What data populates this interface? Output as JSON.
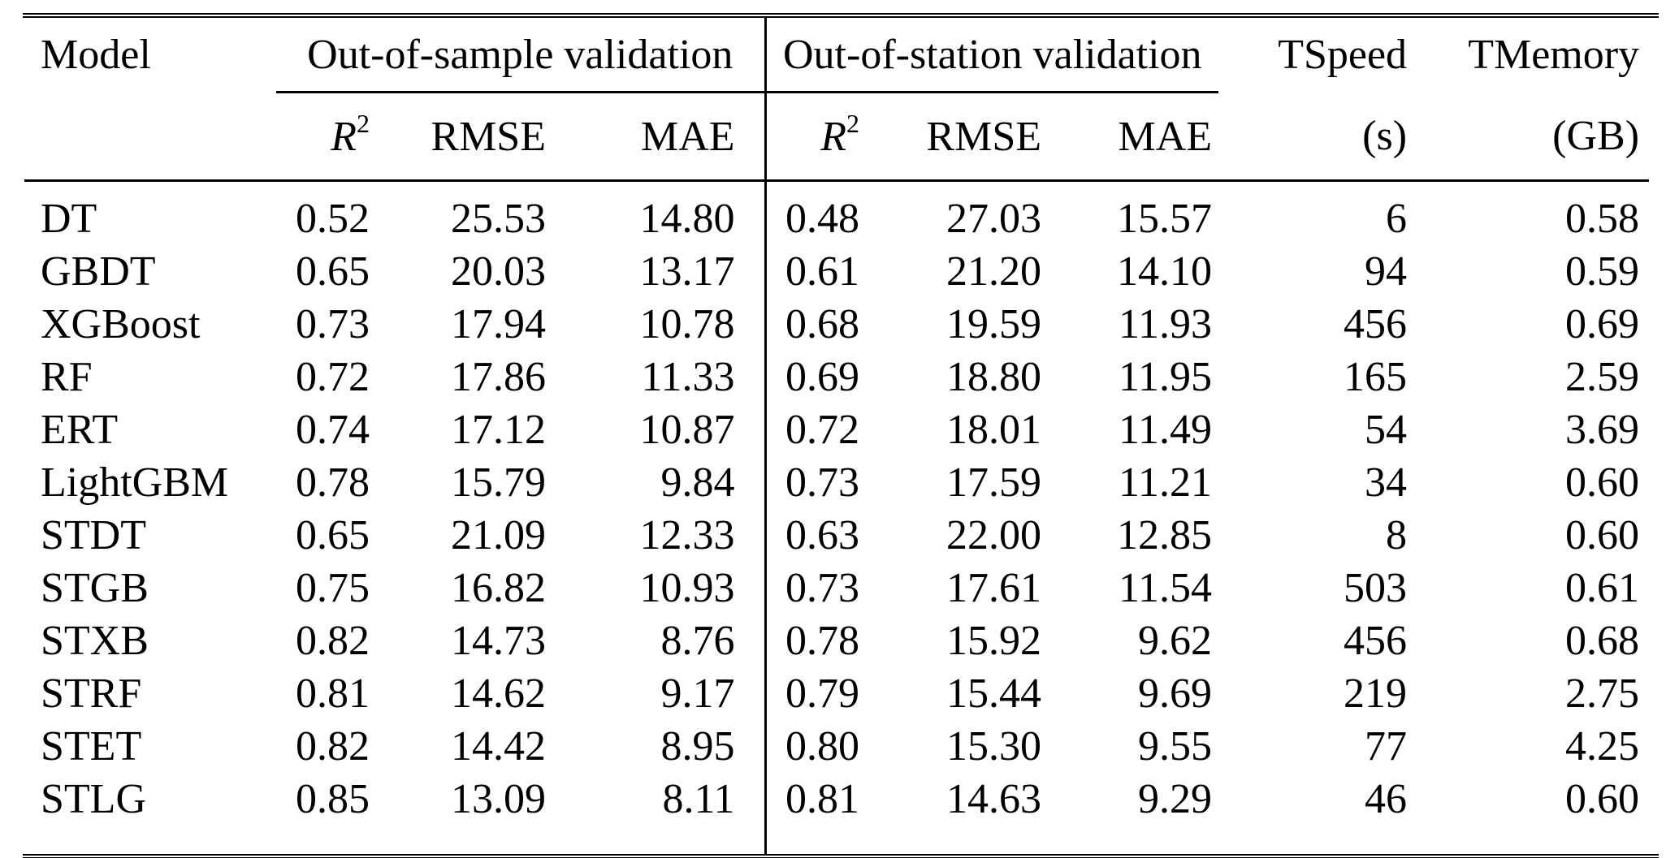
{
  "colors": {
    "background": "#ffffff",
    "text": "#000000",
    "rule": "#000000"
  },
  "table": {
    "headers": {
      "model": "Model",
      "group_oos": "Out-of-sample validation",
      "group_station": "Out-of-station validation",
      "tspeed": "TSpeed",
      "tmemory": "TMemory",
      "r2_base": "R",
      "r2_sup": "2",
      "rmse": "RMSE",
      "mae": "MAE",
      "tspeed_unit": "(s)",
      "tmemory_unit": "(GB)"
    },
    "rows": [
      {
        "model": "DT",
        "oos_r2": "0.52",
        "oos_rmse": "25.53",
        "oos_mae": "14.80",
        "st_r2": "0.48",
        "st_rmse": "27.03",
        "st_mae": "15.57",
        "tspeed": "6",
        "tmemory": "0.58"
      },
      {
        "model": "GBDT",
        "oos_r2": "0.65",
        "oos_rmse": "20.03",
        "oos_mae": "13.17",
        "st_r2": "0.61",
        "st_rmse": "21.20",
        "st_mae": "14.10",
        "tspeed": "94",
        "tmemory": "0.59"
      },
      {
        "model": "XGBoost",
        "oos_r2": "0.73",
        "oos_rmse": "17.94",
        "oos_mae": "10.78",
        "st_r2": "0.68",
        "st_rmse": "19.59",
        "st_mae": "11.93",
        "tspeed": "456",
        "tmemory": "0.69"
      },
      {
        "model": "RF",
        "oos_r2": "0.72",
        "oos_rmse": "17.86",
        "oos_mae": "11.33",
        "st_r2": "0.69",
        "st_rmse": "18.80",
        "st_mae": "11.95",
        "tspeed": "165",
        "tmemory": "2.59"
      },
      {
        "model": "ERT",
        "oos_r2": "0.74",
        "oos_rmse": "17.12",
        "oos_mae": "10.87",
        "st_r2": "0.72",
        "st_rmse": "18.01",
        "st_mae": "11.49",
        "tspeed": "54",
        "tmemory": "3.69"
      },
      {
        "model": "LightGBM",
        "oos_r2": "0.78",
        "oos_rmse": "15.79",
        "oos_mae": "9.84",
        "st_r2": "0.73",
        "st_rmse": "17.59",
        "st_mae": "11.21",
        "tspeed": "34",
        "tmemory": "0.60"
      },
      {
        "model": "STDT",
        "oos_r2": "0.65",
        "oos_rmse": "21.09",
        "oos_mae": "12.33",
        "st_r2": "0.63",
        "st_rmse": "22.00",
        "st_mae": "12.85",
        "tspeed": "8",
        "tmemory": "0.60"
      },
      {
        "model": "STGB",
        "oos_r2": "0.75",
        "oos_rmse": "16.82",
        "oos_mae": "10.93",
        "st_r2": "0.73",
        "st_rmse": "17.61",
        "st_mae": "11.54",
        "tspeed": "503",
        "tmemory": "0.61"
      },
      {
        "model": "STXB",
        "oos_r2": "0.82",
        "oos_rmse": "14.73",
        "oos_mae": "8.76",
        "st_r2": "0.78",
        "st_rmse": "15.92",
        "st_mae": "9.62",
        "tspeed": "456",
        "tmemory": "0.68"
      },
      {
        "model": "STRF",
        "oos_r2": "0.81",
        "oos_rmse": "14.62",
        "oos_mae": "9.17",
        "st_r2": "0.79",
        "st_rmse": "15.44",
        "st_mae": "9.69",
        "tspeed": "219",
        "tmemory": "2.75"
      },
      {
        "model": "STET",
        "oos_r2": "0.82",
        "oos_rmse": "14.42",
        "oos_mae": "8.95",
        "st_r2": "0.80",
        "st_rmse": "15.30",
        "st_mae": "9.55",
        "tspeed": "77",
        "tmemory": "4.25"
      },
      {
        "model": "STLG",
        "oos_r2": "0.85",
        "oos_rmse": "13.09",
        "oos_mae": "8.11",
        "st_r2": "0.81",
        "st_rmse": "14.63",
        "st_mae": "9.29",
        "tspeed": "46",
        "tmemory": "0.60"
      }
    ]
  }
}
